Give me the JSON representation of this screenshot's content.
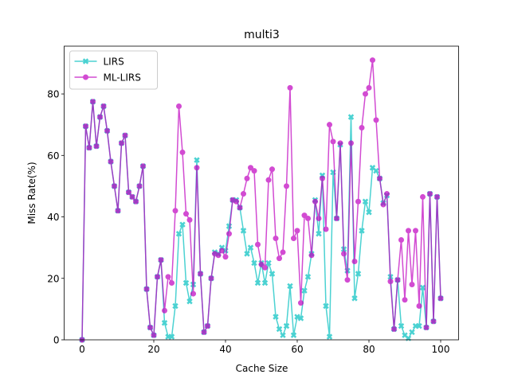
{
  "chart_data": {
    "type": "line",
    "title": "multi3",
    "x_label": "Cache Size",
    "y_label": "Miss Rate(%)",
    "x": [
      0,
      1,
      2,
      3,
      4,
      5,
      6,
      7,
      8,
      9,
      10,
      11,
      12,
      13,
      14,
      15,
      16,
      17,
      18,
      19,
      20,
      21,
      22,
      23,
      24,
      25,
      26,
      27,
      28,
      29,
      30,
      31,
      32,
      33,
      34,
      35,
      36,
      37,
      38,
      39,
      40,
      41,
      42,
      43,
      44,
      45,
      46,
      47,
      48,
      49,
      50,
      51,
      52,
      53,
      54,
      55,
      56,
      57,
      58,
      59,
      60,
      61,
      62,
      63,
      64,
      65,
      66,
      67,
      68,
      69,
      70,
      71,
      72,
      73,
      74,
      75,
      76,
      77,
      78,
      79,
      80,
      81,
      82,
      83,
      84,
      85,
      86,
      87,
      88,
      89,
      90,
      91,
      92,
      93,
      94,
      95,
      96,
      97,
      98,
      99,
      100
    ],
    "series": [
      {
        "name": "LIRS",
        "color": "#00bfbf",
        "marker": "X",
        "values": [
          0,
          69.5,
          62.5,
          77.5,
          63,
          72.5,
          76,
          68,
          58,
          50,
          42,
          64,
          66.5,
          48,
          46.5,
          45,
          50,
          56.5,
          16.5,
          4,
          1.5,
          20.5,
          26,
          5.5,
          1,
          1,
          11,
          34.5,
          37.5,
          18.5,
          12.5,
          18,
          58.5,
          21.5,
          2.5,
          4.5,
          20,
          28.5,
          28,
          30,
          29,
          37,
          45.5,
          45.5,
          43,
          35.5,
          28,
          30,
          25,
          18.5,
          25,
          18.5,
          25,
          21.5,
          7.5,
          3.5,
          1.5,
          4.5,
          17.5,
          1.5,
          7.5,
          7,
          16,
          20.5,
          28,
          45.5,
          34.5,
          53.5,
          11,
          1,
          54.5,
          39.5,
          63.5,
          29.5,
          22.5,
          72.5,
          13.5,
          21.5,
          35.5,
          45,
          41.5,
          56,
          55,
          52.5,
          44.5,
          47,
          20.5,
          3.5,
          19.5,
          4.5,
          1.5,
          0.5,
          2.5,
          4.5,
          4.5,
          17,
          4,
          47.5,
          6,
          46.5,
          13.5
        ]
      },
      {
        "name": "ML-LIRS",
        "color": "#bf00bf",
        "marker": "o",
        "values": [
          0,
          69.5,
          62.5,
          77.5,
          63,
          72.5,
          76,
          68,
          58,
          50,
          42,
          64,
          66.5,
          48,
          46.5,
          45,
          50,
          56.5,
          16.5,
          4,
          1.5,
          20.5,
          26,
          9.5,
          20.5,
          18.5,
          42,
          76,
          61,
          41,
          39,
          15,
          56,
          21.5,
          2.5,
          4.5,
          20,
          28,
          27.5,
          29,
          27,
          34.5,
          45.5,
          45,
          43,
          47.5,
          52.5,
          56,
          55,
          31,
          24.5,
          23.5,
          52,
          55.5,
          33,
          26.5,
          28.5,
          50,
          82,
          33,
          35.5,
          12,
          40.5,
          39.5,
          27.5,
          45,
          39.5,
          52.5,
          36,
          70,
          64.5,
          39.5,
          64,
          28,
          19.5,
          64,
          25.5,
          45,
          69,
          80,
          82,
          91,
          71.5,
          52.5,
          44,
          47.5,
          19,
          3.5,
          19.5,
          32.5,
          13,
          35.5,
          18,
          35.5,
          11,
          46.5,
          4,
          47.5,
          6,
          46.5,
          13.5
        ]
      }
    ],
    "xlim": [
      -5,
      105
    ],
    "ylim": [
      0,
      95.55
    ],
    "xticks": [
      0,
      20,
      40,
      60,
      80,
      100
    ],
    "yticks": [
      0,
      20,
      40,
      60,
      80
    ],
    "legend": "upper left"
  }
}
